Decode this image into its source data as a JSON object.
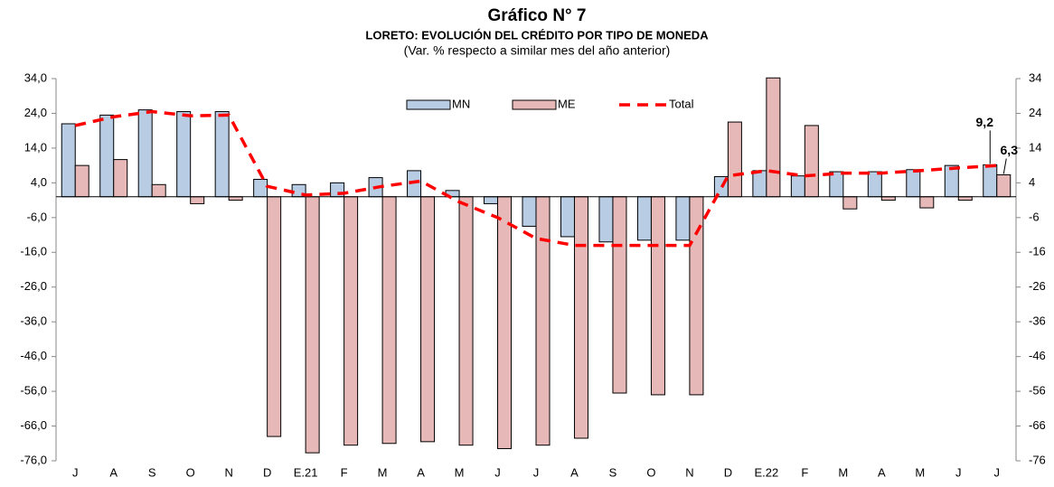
{
  "chart_data": {
    "type": "bar",
    "title": "Gráfico N° 7",
    "subtitle": "LORETO: EVOLUCIÓN DEL CRÉDITO POR TIPO DE MONEDA",
    "note": "(Var. % respecto a similar mes del año anterior)",
    "categories": [
      "J",
      "A",
      "S",
      "O",
      "N",
      "D",
      "E.21",
      "F",
      "M",
      "A",
      "M",
      "J",
      "J",
      "A",
      "S",
      "O",
      "N",
      "D",
      "E.22",
      "F",
      "M",
      "A",
      "M",
      "J",
      "J"
    ],
    "series": [
      {
        "name": "MN",
        "type": "bar",
        "color": "#b8cce4",
        "values": [
          21,
          23.5,
          25,
          24.5,
          24.5,
          5,
          3.5,
          4,
          5.5,
          7.5,
          1.8,
          -2,
          -8.5,
          -11.5,
          -13,
          -12.5,
          -12.5,
          5.8,
          7.5,
          6,
          7.2,
          7.2,
          7.8,
          9,
          9.2
        ],
        "value_labels": [
          null,
          null,
          null,
          null,
          null,
          null,
          null,
          null,
          null,
          null,
          null,
          null,
          null,
          null,
          null,
          null,
          null,
          null,
          null,
          null,
          null,
          null,
          null,
          null,
          "9,2"
        ]
      },
      {
        "name": "ME",
        "type": "bar",
        "color": "#e6b9b8",
        "values": [
          9,
          10.7,
          3.5,
          -2,
          -1,
          -69,
          -73.7,
          -71.5,
          -71,
          -70.5,
          -71.5,
          -72.5,
          -71.5,
          -69.5,
          -56.5,
          -57,
          -57,
          21.5,
          34.2,
          20.5,
          -3.5,
          -1,
          -3.2,
          -1,
          6.3
        ],
        "value_labels": [
          null,
          null,
          null,
          null,
          null,
          null,
          null,
          null,
          null,
          null,
          null,
          null,
          null,
          null,
          null,
          null,
          null,
          null,
          null,
          null,
          null,
          null,
          null,
          null,
          "6,3"
        ]
      },
      {
        "name": "Total",
        "type": "line",
        "color": "#ff0000",
        "values": [
          20.5,
          23,
          24.5,
          23.3,
          23.5,
          3,
          0.5,
          1,
          3,
          4.5,
          -1.5,
          -6,
          -12,
          -14,
          -14,
          -14,
          -14,
          6,
          7.5,
          6,
          6.8,
          6.8,
          7.5,
          8.3,
          9
        ]
      }
    ],
    "ylim": [
      -76,
      34
    ],
    "yticks": [
      {
        "value": 34,
        "label": "34,0"
      },
      {
        "value": 24,
        "label": "24,0"
      },
      {
        "value": 14,
        "label": "14,0"
      },
      {
        "value": 4,
        "label": "4,0"
      },
      {
        "value": -6,
        "label": "-6,0"
      },
      {
        "value": -16,
        "label": "-16,0"
      },
      {
        "value": -26,
        "label": "-26,0"
      },
      {
        "value": -36,
        "label": "-36,0"
      },
      {
        "value": -46,
        "label": "-46,0"
      },
      {
        "value": -56,
        "label": "-56,0"
      },
      {
        "value": -66,
        "label": "-66,0"
      },
      {
        "value": -76,
        "label": "-76,0"
      }
    ],
    "y2lim": [
      -76,
      34
    ],
    "y2ticks": [
      34,
      24,
      14,
      4,
      -6,
      -16,
      -26,
      -36,
      -46,
      -56,
      -66,
      -76
    ],
    "grid": false,
    "legend": "top"
  }
}
